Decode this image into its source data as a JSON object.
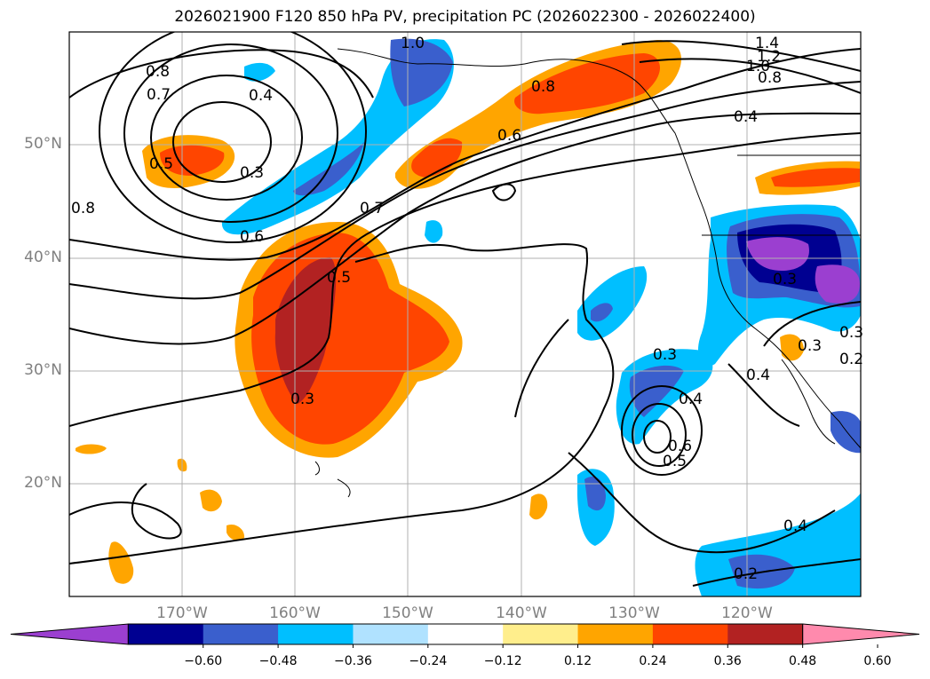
{
  "title": "2026021900 F120 850 hPa PV, precipitation PC (2026022300 - 2026022400)",
  "map": {
    "lat_labels": [
      "50°N",
      "40°N",
      "30°N",
      "20°N"
    ],
    "lon_labels": [
      "170°W",
      "160°W",
      "150°W",
      "140°W",
      "130°W",
      "120°W"
    ],
    "contour_labels": [
      "1.4",
      "1.2",
      "1.0",
      "0.8",
      "1.0",
      "0.8",
      "0.7",
      "0.4",
      "0.8",
      "0.6",
      "0.4",
      "0.5",
      "0.3",
      "0.8",
      "0.7",
      "0.6",
      "0.5",
      "0.3",
      "0.3",
      "0.3",
      "0.4",
      "0.6",
      "0.5",
      "0.3",
      "0.4",
      "0.3",
      "0.2",
      "0.4",
      "0.2"
    ]
  },
  "colorbar": {
    "ticks": [
      "−0.60",
      "−0.48",
      "−0.36",
      "−0.24",
      "−0.12",
      "0.12",
      "0.24",
      "0.36",
      "0.48",
      "0.60"
    ],
    "colors": [
      "#9b3fd0",
      "#000091",
      "#3a5fcd",
      "#00bfff",
      "#b0e2ff",
      "#ffffff",
      "#ffee8c",
      "#ffa500",
      "#ff4500",
      "#b22222",
      "#ff8aad"
    ]
  }
}
